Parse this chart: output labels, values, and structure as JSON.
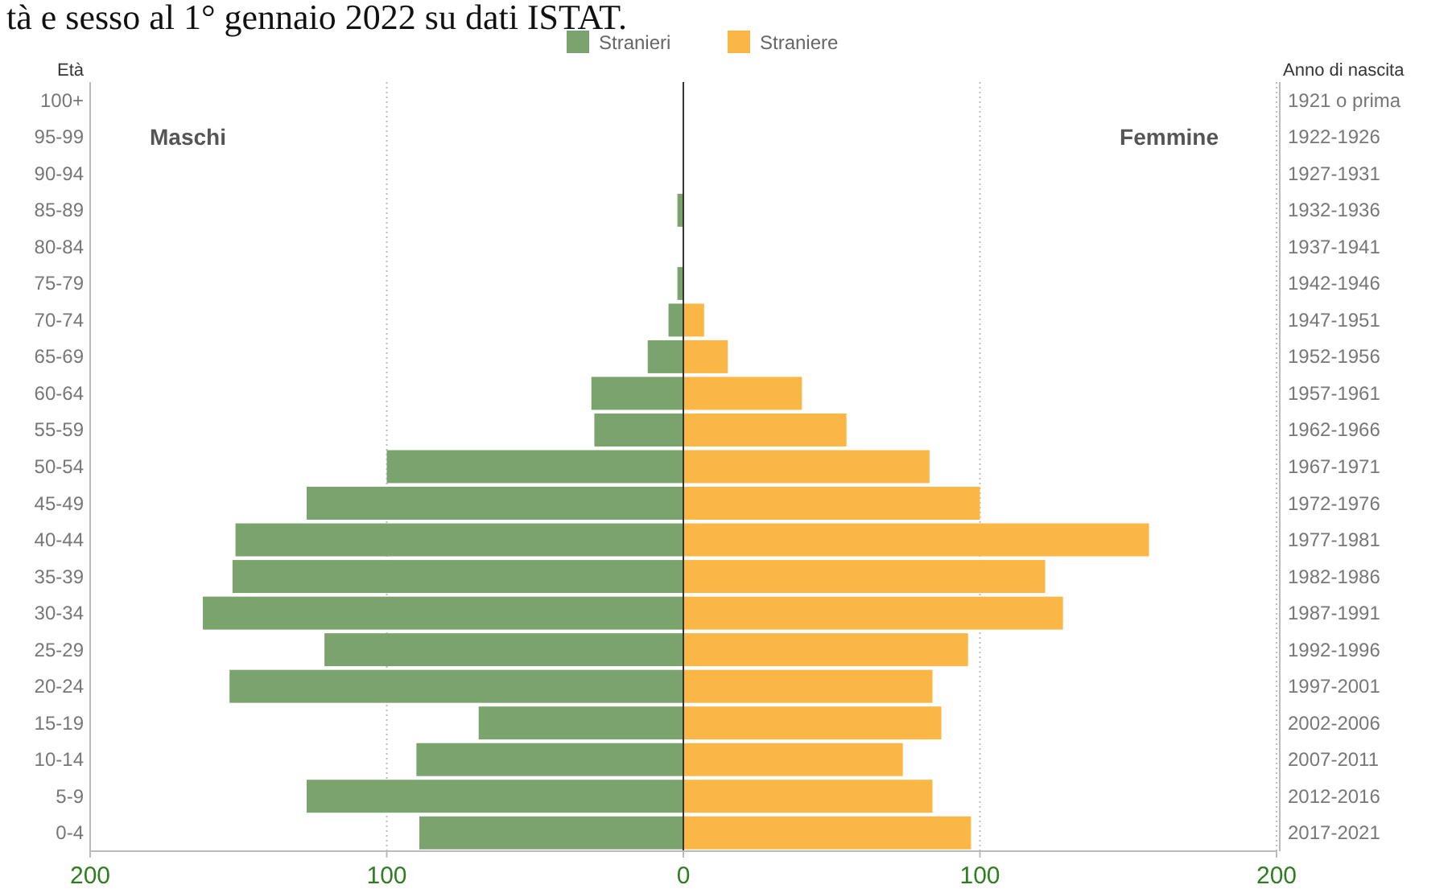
{
  "chart_data": {
    "type": "bar",
    "orientation": "horizontal",
    "title": "tà e sesso al 1° gennaio 2022 su dati ISTAT.",
    "ylabel": "Età",
    "y2label": "Anno di nascita",
    "categories": [
      "100+",
      "95-99",
      "90-94",
      "85-89",
      "80-84",
      "75-79",
      "70-74",
      "65-69",
      "60-64",
      "55-59",
      "50-54",
      "45-49",
      "40-44",
      "35-39",
      "30-34",
      "25-29",
      "20-24",
      "15-19",
      "10-14",
      "5-9",
      "0-4"
    ],
    "y2_categories": [
      "1921 o prima",
      "1922-1926",
      "1927-1931",
      "1932-1936",
      "1937-1941",
      "1942-1946",
      "1947-1951",
      "1952-1956",
      "1957-1961",
      "1962-1966",
      "1967-1971",
      "1972-1976",
      "1977-1981",
      "1982-1986",
      "1987-1991",
      "1992-1996",
      "1997-2001",
      "2002-2006",
      "2007-2011",
      "2012-2016",
      "2017-2021"
    ],
    "series": [
      {
        "name": "Stranieri",
        "color": "#7aa36d",
        "values": [
          0,
          0,
          0,
          -2,
          0,
          -2,
          -5,
          -12,
          -31,
          -30,
          -100,
          -127,
          -151,
          -152,
          -162,
          -121,
          -153,
          -69,
          -90,
          -127,
          -89
        ]
      },
      {
        "name": "Straniere",
        "color": "#fbb746",
        "values": [
          0,
          0,
          0,
          0,
          0,
          0,
          7,
          15,
          40,
          55,
          83,
          100,
          157,
          122,
          128,
          96,
          84,
          87,
          74,
          84,
          97
        ]
      }
    ],
    "xlim": [
      -200,
      200
    ],
    "xticks": [
      {
        "value": -200,
        "label": "200"
      },
      {
        "value": -100,
        "label": "100"
      },
      0,
      100,
      200
    ],
    "annotations": [
      "Maschi",
      "Femmine"
    ],
    "grid": "x",
    "legend": "top",
    "stacked": true
  }
}
